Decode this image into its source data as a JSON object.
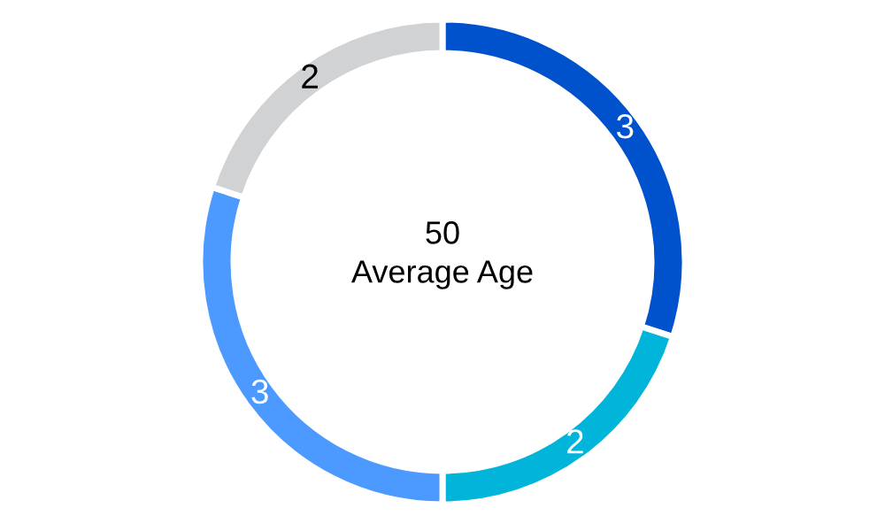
{
  "chart_data": {
    "type": "donut",
    "categories": [
      null,
      null,
      null,
      null
    ],
    "values": [
      3,
      2,
      3,
      2
    ],
    "colors": [
      "#0052cc",
      "#00b5d9",
      "#4c9aff",
      "#d0d2d4"
    ],
    "data_labels": true,
    "annotations": [
      "50",
      "Average Age"
    ]
  }
}
